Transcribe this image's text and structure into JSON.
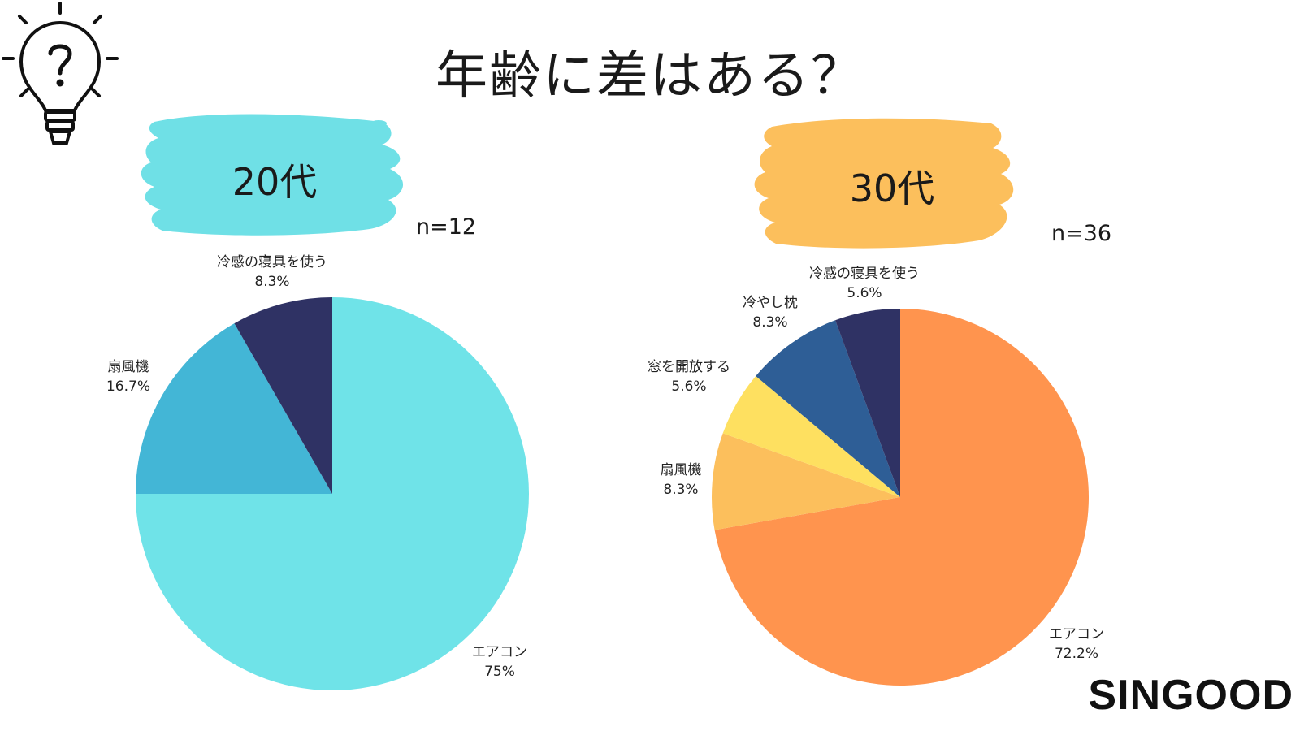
{
  "title": "年齢に差はある？",
  "brand": "SINGOOD",
  "icon": "lightbulb-question-icon",
  "colors": {
    "badge_20s": "#6fe0e6",
    "badge_30s": "#fcbf5c"
  },
  "chart_data": [
    {
      "type": "pie",
      "title": "20代",
      "n_label": "n=12",
      "slices": [
        {
          "label": "エアコン",
          "value": 75,
          "value_label": "75%",
          "color": "#6fe3e8"
        },
        {
          "label": "扇風機",
          "value": 16.7,
          "value_label": "16.7%",
          "color": "#43b6d6"
        },
        {
          "label": "冷感の寝具を使う",
          "value": 8.3,
          "value_label": "8.3%",
          "color": "#2f3264"
        }
      ]
    },
    {
      "type": "pie",
      "title": "30代",
      "n_label": "n=36",
      "slices": [
        {
          "label": "エアコン",
          "value": 72.2,
          "value_label": "72.2%",
          "color": "#ff944e"
        },
        {
          "label": "扇風機",
          "value": 8.3,
          "value_label": "8.3%",
          "color": "#fcbf5c"
        },
        {
          "label": "窓を開放する",
          "value": 5.6,
          "value_label": "5.6%",
          "color": "#fee060"
        },
        {
          "label": "冷やし枕",
          "value": 8.3,
          "value_label": "8.3%",
          "color": "#2e5e96"
        },
        {
          "label": "冷感の寝具を使う",
          "value": 5.6,
          "value_label": "5.6%",
          "color": "#2f3264"
        }
      ]
    }
  ]
}
